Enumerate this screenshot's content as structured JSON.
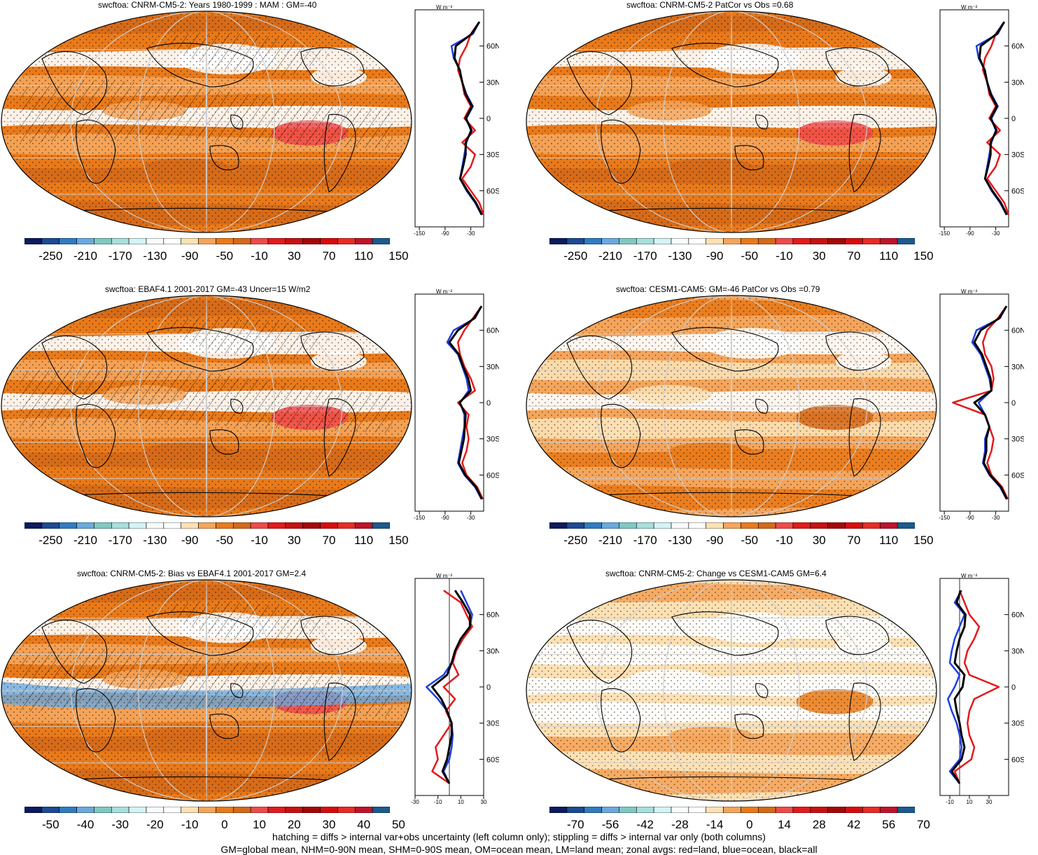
{
  "footnotes": {
    "line1": "hatching = diffs > internal var+obs uncertainty (left column only); stippling = diffs > internal var only (both columns)",
    "line2": "GM=global mean, NHM=0-90N mean, SHM=0-90S mean, OM=ocean mean, LM=land mean; zonal avgs: red=land, blue=ocean, black=all"
  },
  "zonal_unit": "W m⁻²",
  "lat_labels": [
    "60N",
    "30N",
    "0",
    "30S",
    "60S"
  ],
  "colors": {
    "land": "#e31a1c",
    "ocean": "#1f3fe0",
    "all": "#000000",
    "grid": "#cfcfcf",
    "coast": "#000000"
  },
  "palettes": {
    "abs": [
      "#0d1a5e",
      "#1c4a94",
      "#2f7cc2",
      "#6aa9df",
      "#7fc9c2",
      "#a6dfdc",
      "#d4f4f4",
      "#f7fbfb",
      "#ffffff",
      "#fde1b4",
      "#f5a55b",
      "#e97a1a",
      "#d4691a",
      "#f04a4a",
      "#e41a1c",
      "#c81010",
      "#a40808",
      "#d80b0b",
      "#e72c24",
      "#c0132a",
      "#1b5a8f"
    ],
    "diff": [
      "#0d1a5e",
      "#1c4a94",
      "#2f7cc2",
      "#6aa9df",
      "#7fc9c2",
      "#a6dfdc",
      "#d4f4f4",
      "#f7fbfb",
      "#ffffff",
      "#fde1b4",
      "#f5a55b",
      "#e97a1a",
      "#d4691a",
      "#f04a4a",
      "#e41a1c",
      "#c81010",
      "#a40808",
      "#d80b0b",
      "#e72c24",
      "#c0132a",
      "#1b5a8f"
    ]
  },
  "panels": [
    {
      "title": "swcftoa: CNRM-CM5-2: Years 1980-1999 : MAM : GM=-40",
      "scale": "abs",
      "colorbar_labels": [
        "-250",
        "-210",
        "-170",
        "-130",
        "-90",
        "-50",
        "-10",
        "30",
        "70",
        "110",
        "150"
      ],
      "zonal_ticks": [
        "-150",
        "-90",
        "-30"
      ],
      "hatched": true,
      "base_level": 11,
      "zonal": {
        "xlim": [
          -160,
          0
        ],
        "lat": [
          80,
          70,
          60,
          50,
          40,
          30,
          20,
          10,
          0,
          -10,
          -20,
          -30,
          -40,
          -50,
          -60,
          -70,
          -80
        ],
        "land": [
          -10,
          -30,
          -40,
          -55,
          -60,
          -50,
          -45,
          -30,
          -45,
          -20,
          -50,
          -20,
          -30,
          -50,
          -30,
          -10,
          0
        ],
        "ocean": [
          -10,
          -25,
          -75,
          -70,
          -55,
          -50,
          -40,
          -25,
          -40,
          -30,
          -40,
          -45,
          -50,
          -55,
          -40,
          -20,
          -5
        ],
        "all": [
          -10,
          -28,
          -65,
          -68,
          -56,
          -50,
          -42,
          -27,
          -42,
          -28,
          -42,
          -42,
          -48,
          -55,
          -38,
          -18,
          -4
        ]
      }
    },
    {
      "title": "swcftoa: CNRM-CM5-2 PatCor vs Obs =0.68",
      "scale": "abs",
      "colorbar_labels": [
        "-250",
        "-210",
        "-170",
        "-130",
        "-90",
        "-50",
        "-10",
        "30",
        "70",
        "110",
        "150"
      ],
      "zonal_ticks": [
        "-150",
        "-90",
        "-30"
      ],
      "hatched": false,
      "base_level": 11,
      "zonal": {
        "xlim": [
          -160,
          0
        ],
        "lat": [
          80,
          70,
          60,
          50,
          40,
          30,
          20,
          10,
          0,
          -10,
          -20,
          -30,
          -40,
          -50,
          -60,
          -70,
          -80
        ],
        "land": [
          -10,
          -30,
          -40,
          -55,
          -60,
          -50,
          -45,
          -30,
          -45,
          -20,
          -50,
          -20,
          -30,
          -50,
          -30,
          -10,
          0
        ],
        "ocean": [
          -10,
          -25,
          -75,
          -70,
          -55,
          -50,
          -40,
          -25,
          -40,
          -30,
          -40,
          -45,
          -50,
          -55,
          -40,
          -20,
          -5
        ],
        "all": [
          -10,
          -28,
          -65,
          -68,
          -56,
          -50,
          -42,
          -27,
          -42,
          -28,
          -42,
          -42,
          -48,
          -55,
          -38,
          -18,
          -4
        ]
      }
    },
    {
      "title": "swcftoa: EBAF4.1 2001-2017 GM=-43 Uncer=15 W/m2",
      "scale": "abs",
      "colorbar_labels": [
        "-250",
        "-210",
        "-170",
        "-130",
        "-90",
        "-50",
        "-10",
        "30",
        "70",
        "110",
        "150"
      ],
      "zonal_ticks": [
        "-150",
        "-90",
        "-30"
      ],
      "hatched": true,
      "base_level": 11,
      "zonal": {
        "xlim": [
          -160,
          0
        ],
        "lat": [
          80,
          70,
          60,
          50,
          40,
          30,
          20,
          10,
          0,
          -10,
          -20,
          -30,
          -40,
          -50,
          -60,
          -70,
          -80
        ],
        "land": [
          -5,
          -25,
          -45,
          -60,
          -55,
          -45,
          -30,
          -20,
          -60,
          -35,
          -40,
          -35,
          -40,
          -50,
          -40,
          -15,
          -2
        ],
        "ocean": [
          -5,
          -20,
          -70,
          -85,
          -60,
          -50,
          -40,
          -35,
          -55,
          -45,
          -45,
          -50,
          -55,
          -60,
          -45,
          -20,
          -5
        ],
        "all": [
          -5,
          -22,
          -60,
          -80,
          -58,
          -48,
          -36,
          -30,
          -56,
          -42,
          -44,
          -46,
          -52,
          -58,
          -43,
          -18,
          -4
        ]
      }
    },
    {
      "title": "swcftoa: CESM1-CAM5: GM=-46 PatCor vs Obs =0.79",
      "scale": "abs",
      "colorbar_labels": [
        "-250",
        "-210",
        "-170",
        "-130",
        "-90",
        "-50",
        "-10",
        "30",
        "70",
        "110",
        "150"
      ],
      "zonal_ticks": [
        "-150",
        "-90",
        "-30"
      ],
      "hatched": false,
      "base_level": 10,
      "zonal": {
        "xlim": [
          -160,
          0
        ],
        "lat": [
          80,
          70,
          60,
          50,
          40,
          30,
          20,
          10,
          0,
          -10,
          -20,
          -30,
          -40,
          -50,
          -60,
          -70,
          -80
        ],
        "land": [
          -5,
          -25,
          -50,
          -60,
          -55,
          -40,
          -35,
          -40,
          -130,
          -55,
          -45,
          -35,
          -40,
          -50,
          -40,
          -15,
          -2
        ],
        "ocean": [
          -5,
          -20,
          -75,
          -85,
          -65,
          -55,
          -45,
          -40,
          -70,
          -55,
          -45,
          -55,
          -55,
          -60,
          -45,
          -20,
          -5
        ],
        "all": [
          -5,
          -22,
          -65,
          -80,
          -62,
          -52,
          -42,
          -40,
          -80,
          -55,
          -45,
          -52,
          -52,
          -58,
          -43,
          -18,
          -4
        ]
      }
    },
    {
      "title": "swcftoa: CNRM-CM5-2: Bias vs EBAF4.1 2001-2017 GM=2.4",
      "scale": "diff",
      "colorbar_labels": [
        "-50",
        "-40",
        "-30",
        "-20",
        "-10",
        "0",
        "10",
        "20",
        "30",
        "40",
        "50"
      ],
      "zonal_ticks": [
        "-30",
        "-10",
        "10",
        "30"
      ],
      "hatched": true,
      "base_level": 11,
      "zonal": {
        "xlim": [
          -30,
          30
        ],
        "lat": [
          80,
          70,
          60,
          50,
          40,
          30,
          20,
          10,
          0,
          -10,
          -20,
          -30,
          -40,
          -50,
          -60,
          -70,
          -80
        ],
        "land": [
          -5,
          10,
          15,
          20,
          12,
          6,
          3,
          8,
          -5,
          5,
          -3,
          2,
          -5,
          -12,
          -10,
          -15,
          0
        ],
        "ocean": [
          10,
          15,
          20,
          18,
          10,
          5,
          2,
          -5,
          -20,
          -10,
          -2,
          2,
          3,
          2,
          0,
          -5,
          0
        ],
        "all": [
          5,
          12,
          18,
          18,
          10,
          5,
          2,
          -2,
          -15,
          -7,
          -2,
          2,
          2,
          0,
          -2,
          -6,
          0
        ]
      }
    },
    {
      "title": "swcftoa: CNRM-CM5-2: Change vs CESM1-CAM5 GM=6.4",
      "scale": "diff",
      "colorbar_labels": [
        "-70",
        "-56",
        "-42",
        "-28",
        "-14",
        "0",
        "14",
        "28",
        "42",
        "56",
        "70"
      ],
      "zonal_ticks": [
        "-10",
        "10",
        "30"
      ],
      "hatched": false,
      "base_level": 9,
      "zonal": {
        "xlim": [
          -20,
          50
        ],
        "lat": [
          80,
          70,
          60,
          50,
          40,
          30,
          20,
          10,
          0,
          -10,
          -20,
          -30,
          -40,
          -50,
          -60,
          -70,
          -80
        ],
        "land": [
          0,
          5,
          10,
          20,
          15,
          8,
          5,
          10,
          40,
          15,
          10,
          8,
          10,
          15,
          12,
          -5,
          0
        ],
        "ocean": [
          2,
          -5,
          5,
          0,
          -5,
          -8,
          -10,
          0,
          -5,
          -12,
          -8,
          -3,
          0,
          2,
          0,
          -10,
          0
        ],
        "all": [
          1,
          -3,
          6,
          5,
          0,
          -3,
          -5,
          5,
          3,
          -5,
          -3,
          0,
          2,
          5,
          2,
          -8,
          0
        ]
      }
    }
  ]
}
